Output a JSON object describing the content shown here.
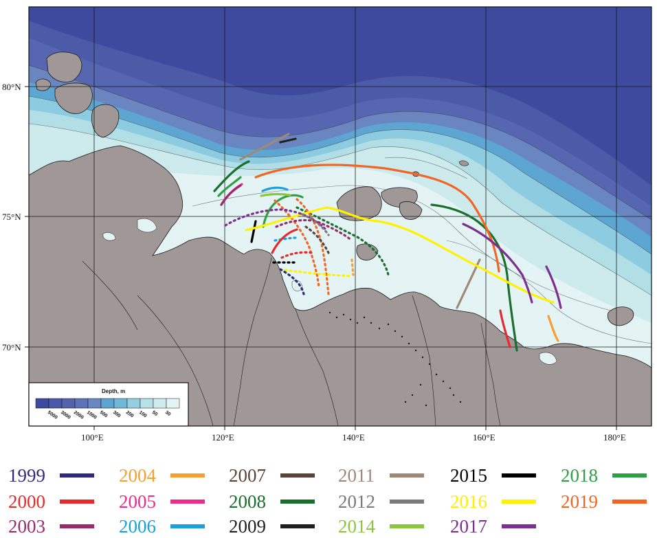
{
  "map": {
    "lat_labels": [
      "80°N",
      "75°N",
      "70°N"
    ],
    "lon_labels": [
      "100°E",
      "120°E",
      "140°E",
      "160°E",
      "180°E"
    ],
    "colors": {
      "ocean_deep": "#3d4a9e",
      "ocean_4000": "#4a59a8",
      "ocean_3000": "#5363ad",
      "ocean_2000": "#5e73b6",
      "ocean_1000": "#6a86c0",
      "ocean_500": "#5da3cf",
      "ocean_300": "#6fb8d8",
      "ocean_200": "#93cfe0",
      "ocean_100": "#b6e1e7",
      "ocean_50": "#cfeced",
      "ocean_30": "#e3f4f4",
      "land": "#a09797",
      "coast": "#1a1a1a"
    }
  },
  "depth_legend": {
    "title": "Depth, m",
    "ticks": [
      "5000",
      "3000",
      "2000",
      "1000",
      "500",
      "300",
      "200",
      "100",
      "50",
      "30"
    ],
    "colors": [
      "#3d4a9e",
      "#4a59a8",
      "#5363ad",
      "#5e73b6",
      "#6a86c0",
      "#5da3cf",
      "#6fb8d8",
      "#93cfe0",
      "#b6e1e7",
      "#cfeced",
      "#e3f4f4"
    ]
  },
  "legend": [
    {
      "year": "1999",
      "color": "#2f2a7f"
    },
    {
      "year": "2000",
      "color": "#e8282a"
    },
    {
      "year": "2003",
      "color": "#9b2a6c"
    },
    {
      "year": "2004",
      "color": "#f5a030"
    },
    {
      "year": "2005",
      "color": "#ec2c8c"
    },
    {
      "year": "2006",
      "color": "#1aa0dc"
    },
    {
      "year": "2007",
      "color": "#5a4438"
    },
    {
      "year": "2008",
      "color": "#1a6e2e"
    },
    {
      "year": "2009",
      "color": "#231f20"
    },
    {
      "year": "2011",
      "color": "#a08878"
    },
    {
      "year": "2012",
      "color": "#7a7a7a"
    },
    {
      "year": "2014",
      "color": "#8cc63f"
    },
    {
      "year": "2015",
      "color": "#000000"
    },
    {
      "year": "2016",
      "color": "#fff200"
    },
    {
      "year": "2017",
      "color": "#7b2f8e"
    },
    {
      "year": "2018",
      "color": "#2ea043"
    },
    {
      "year": "2019",
      "color": "#f26522"
    }
  ]
}
